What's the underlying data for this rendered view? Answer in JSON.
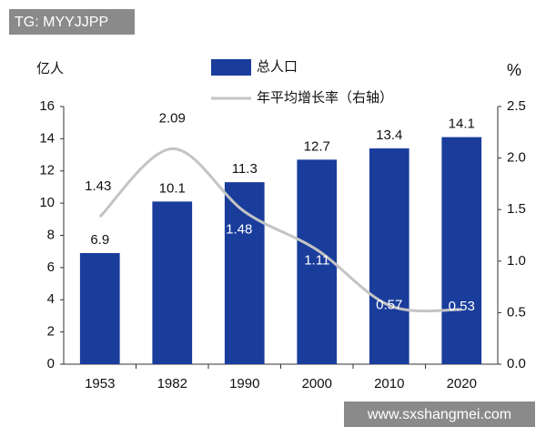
{
  "watermarks": [
    "TG: MYYJJPP",
    "www.sxshangmei.com"
  ],
  "chart_data": {
    "type": "bar-line",
    "y_label": "亿人",
    "y2_label": "%",
    "categories": [
      "1953",
      "1982",
      "1990",
      "2000",
      "2010",
      "2020"
    ],
    "series": [
      {
        "name": "总人口",
        "type": "bar",
        "color": "#1a3d9c",
        "values": [
          6.9,
          10.1,
          11.3,
          12.7,
          13.4,
          14.1
        ]
      },
      {
        "name": "年平均增长率（右轴）",
        "type": "line",
        "axis": "y2",
        "color": "#c4c4c4",
        "values": [
          1.43,
          2.09,
          1.48,
          1.11,
          0.57,
          0.53
        ]
      }
    ],
    "ylim": [
      0,
      16
    ],
    "yticks": [
      0,
      2,
      4,
      6,
      8,
      10,
      12,
      14,
      16
    ],
    "y2lim": [
      0,
      2.5
    ],
    "y2ticks": [
      {
        "value": 0,
        "label": "0.0"
      },
      0.5,
      {
        "value": 1,
        "label": "1.0"
      },
      1.5,
      {
        "value": 2,
        "label": "2.0"
      },
      2.5
    ]
  }
}
